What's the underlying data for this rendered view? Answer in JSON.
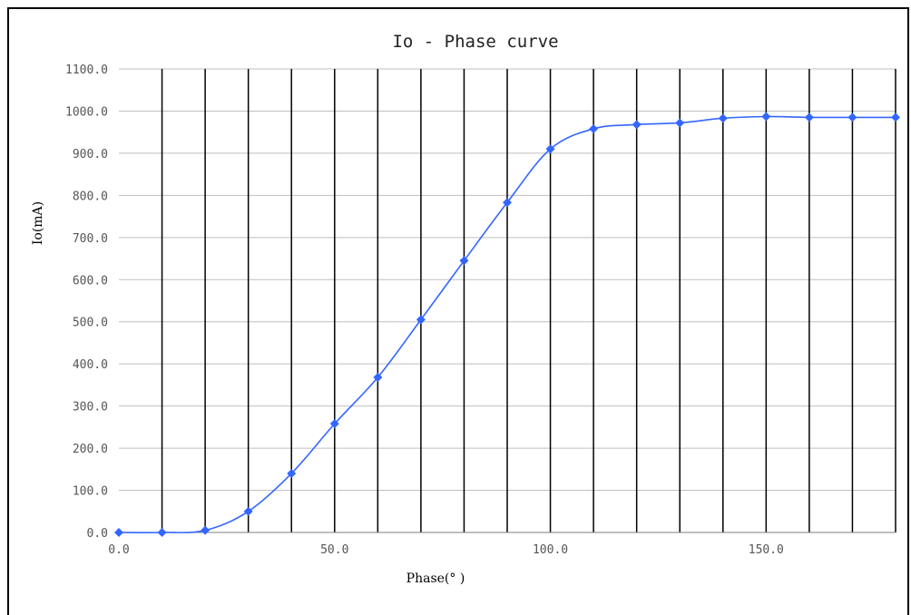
{
  "chart_data": {
    "type": "line",
    "title": "Io - Phase curve",
    "xlabel": "Phase(° )",
    "ylabel": "Io(mA)",
    "xlim": [
      0,
      180
    ],
    "ylim": [
      0,
      1100
    ],
    "x_ticks": [
      "0.0",
      "50.0",
      "100.0",
      "150.0"
    ],
    "x_tick_values": [
      0,
      50,
      100,
      150
    ],
    "y_ticks": [
      "0.0",
      "100.0",
      "200.0",
      "300.0",
      "400.0",
      "500.0",
      "600.0",
      "700.0",
      "800.0",
      "900.0",
      "1000.0",
      "1100.0"
    ],
    "y_tick_values": [
      0,
      100,
      200,
      300,
      400,
      500,
      600,
      700,
      800,
      900,
      1000,
      1100
    ],
    "vertical_gridlines_x": [
      10,
      20,
      30,
      40,
      50,
      60,
      70,
      80,
      90,
      100,
      110,
      120,
      130,
      140,
      150,
      160,
      170,
      180
    ],
    "grid": true,
    "line_color": "#3366ff",
    "marker": "diamond",
    "series": [
      {
        "x": [
          0,
          10,
          20,
          30,
          40,
          50,
          60,
          70,
          80,
          90,
          100,
          110,
          120,
          130,
          140,
          150,
          160,
          170,
          180
        ],
        "values": [
          0,
          0,
          5,
          50,
          140,
          258,
          368,
          505,
          645,
          783,
          910,
          958,
          968,
          972,
          983,
          987,
          985,
          985,
          985
        ]
      }
    ]
  }
}
